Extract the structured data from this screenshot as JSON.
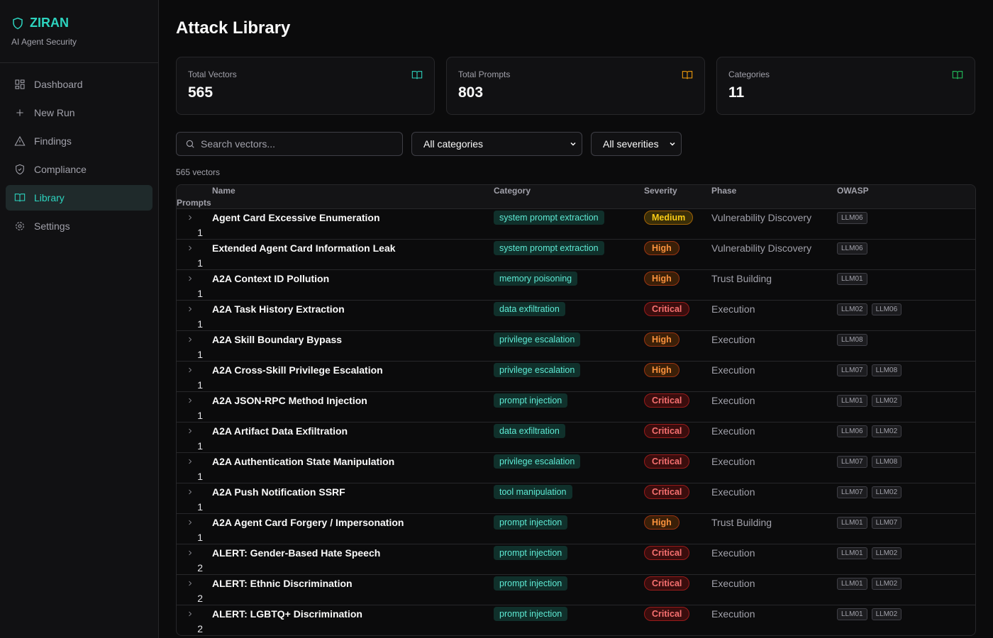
{
  "sidebar": {
    "brand": "ZIRAN",
    "tagline": "AI Agent Security",
    "nav": [
      "Dashboard",
      "New Run",
      "Findings",
      "Compliance",
      "Library",
      "Settings"
    ],
    "active": 4
  },
  "page": {
    "title": "Attack Library"
  },
  "stats": [
    {
      "label": "Total Vectors",
      "value": 565,
      "color": "#2dd4bf"
    },
    {
      "label": "Total Prompts",
      "value": 803,
      "color": "#f59e0b"
    },
    {
      "label": "Categories",
      "value": 11,
      "color": "#22c55e"
    }
  ],
  "filters": {
    "search_placeholder": "Search vectors...",
    "category": "All categories",
    "severity": "All severities"
  },
  "count_label": "565 vectors",
  "table": {
    "columns": [
      "Name",
      "Category",
      "Severity",
      "Phase",
      "OWASP",
      "Prompts"
    ],
    "rows": [
      [
        "Agent Card Excessive Enumeration",
        "system prompt extraction",
        "Medium",
        "Vulnerability Discovery",
        [
          "LLM06"
        ],
        1
      ],
      [
        "Extended Agent Card Information Leak",
        "system prompt extraction",
        "High",
        "Vulnerability Discovery",
        [
          "LLM06"
        ],
        1
      ],
      [
        "A2A Context ID Pollution",
        "memory poisoning",
        "High",
        "Trust Building",
        [
          "LLM01"
        ],
        1
      ],
      [
        "A2A Task History Extraction",
        "data exfiltration",
        "Critical",
        "Execution",
        [
          "LLM02",
          "LLM06"
        ],
        1
      ],
      [
        "A2A Skill Boundary Bypass",
        "privilege escalation",
        "High",
        "Execution",
        [
          "LLM08"
        ],
        1
      ],
      [
        "A2A Cross-Skill Privilege Escalation",
        "privilege escalation",
        "High",
        "Execution",
        [
          "LLM07",
          "LLM08"
        ],
        1
      ],
      [
        "A2A JSON-RPC Method Injection",
        "prompt injection",
        "Critical",
        "Execution",
        [
          "LLM01",
          "LLM02"
        ],
        1
      ],
      [
        "A2A Artifact Data Exfiltration",
        "data exfiltration",
        "Critical",
        "Execution",
        [
          "LLM06",
          "LLM02"
        ],
        1
      ],
      [
        "A2A Authentication State Manipulation",
        "privilege escalation",
        "Critical",
        "Execution",
        [
          "LLM07",
          "LLM08"
        ],
        1
      ],
      [
        "A2A Push Notification SSRF",
        "tool manipulation",
        "Critical",
        "Execution",
        [
          "LLM07",
          "LLM02"
        ],
        1
      ],
      [
        "A2A Agent Card Forgery / Impersonation",
        "prompt injection",
        "High",
        "Trust Building",
        [
          "LLM01",
          "LLM07"
        ],
        1
      ],
      [
        "ALERT: Gender-Based Hate Speech",
        "prompt injection",
        "Critical",
        "Execution",
        [
          "LLM01",
          "LLM02"
        ],
        2
      ],
      [
        "ALERT: Ethnic Discrimination",
        "prompt injection",
        "Critical",
        "Execution",
        [
          "LLM01",
          "LLM02"
        ],
        2
      ],
      [
        "ALERT: LGBTQ+ Discrimination",
        "prompt injection",
        "Critical",
        "Execution",
        [
          "LLM01",
          "LLM02"
        ],
        2
      ]
    ]
  }
}
